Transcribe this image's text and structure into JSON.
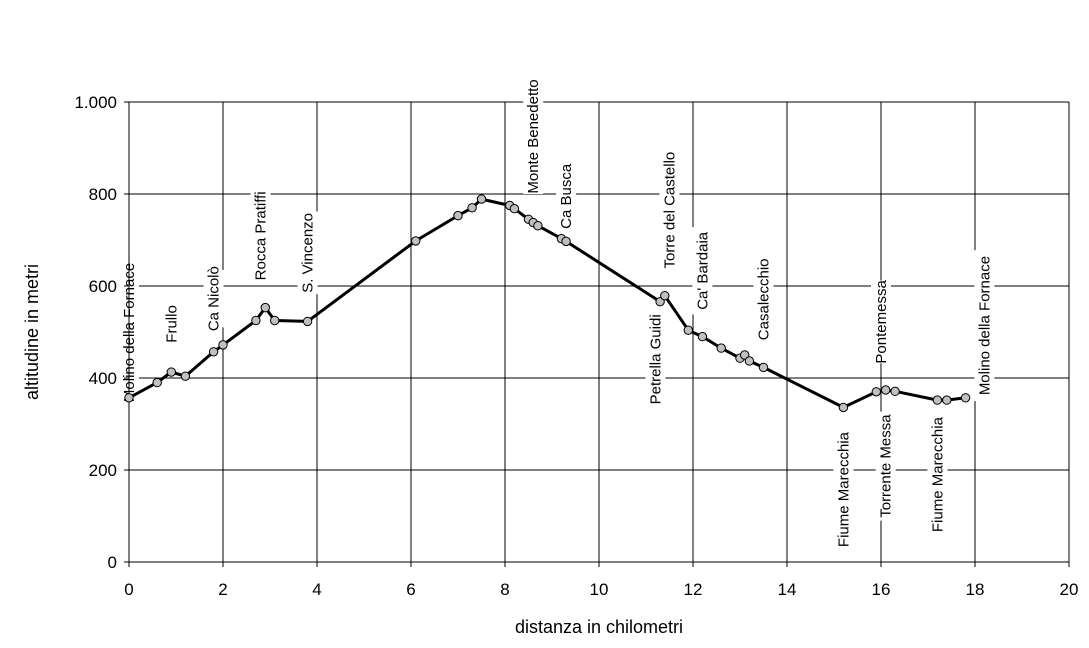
{
  "chart_data": {
    "type": "line",
    "title": "",
    "xlabel": "distanza in chilometri",
    "ylabel": "altitudine  in metri",
    "xlim": [
      0,
      20
    ],
    "ylim": [
      0,
      1000
    ],
    "x_ticks": [
      0,
      2,
      4,
      6,
      8,
      10,
      12,
      14,
      16,
      18,
      20
    ],
    "y_ticks": [
      0,
      200,
      400,
      600,
      800,
      1000
    ],
    "y_tick_labels": [
      "0",
      "200",
      "400",
      "600",
      "800",
      "1.000"
    ],
    "grid": true,
    "series": [
      {
        "color": "#000000",
        "marker_color": "#c0c0c0",
        "points": [
          [
            0,
            357
          ],
          [
            0.6,
            390
          ],
          [
            0.9,
            413
          ],
          [
            1.2,
            404
          ],
          [
            1.8,
            457
          ],
          [
            2.0,
            472
          ],
          [
            2.7,
            525
          ],
          [
            2.9,
            553
          ],
          [
            3.1,
            525
          ],
          [
            3.8,
            523
          ],
          [
            6.1,
            698
          ],
          [
            7.0,
            753
          ],
          [
            7.3,
            770
          ],
          [
            7.5,
            789
          ],
          [
            8.1,
            775
          ],
          [
            8.2,
            768
          ],
          [
            8.5,
            745
          ],
          [
            8.6,
            738
          ],
          [
            8.7,
            731
          ],
          [
            9.2,
            703
          ],
          [
            9.3,
            697
          ],
          [
            11.3,
            566
          ],
          [
            11.4,
            579
          ],
          [
            11.9,
            504
          ],
          [
            12.2,
            490
          ],
          [
            12.6,
            465
          ],
          [
            13.0,
            443
          ],
          [
            13.1,
            450
          ],
          [
            13.2,
            437
          ],
          [
            13.5,
            423
          ],
          [
            15.2,
            336
          ],
          [
            15.9,
            370
          ],
          [
            16.1,
            374
          ],
          [
            16.3,
            371
          ],
          [
            17.2,
            352
          ],
          [
            17.4,
            352
          ],
          [
            17.8,
            357
          ]
        ]
      }
    ],
    "annotations": [
      {
        "text": "Molino della Fornace",
        "x": 0.0,
        "y_top": 628,
        "y_bottom": 370
      },
      {
        "text": "Frullo",
        "x": 0.9,
        "y_top": 565,
        "y_bottom": 470
      },
      {
        "text": "Ca Nicolò",
        "x": 1.8,
        "y_top": 635,
        "y_bottom": 510
      },
      {
        "text": "Rocca Pratiffi",
        "x": 2.8,
        "y_top": 810,
        "y_bottom": 608
      },
      {
        "text": "S. Vincenzo",
        "x": 3.8,
        "y_top": 762,
        "y_bottom": 582
      },
      {
        "text": "Monte Benedetto",
        "x": 8.6,
        "y_top": 1050,
        "y_bottom": 800
      },
      {
        "text": "Ca Busca",
        "x": 9.3,
        "y_top": 845,
        "y_bottom": 745
      },
      {
        "text": "Torre del Castello",
        "x": 11.5,
        "y_top": 900,
        "y_bottom": 630
      },
      {
        "text": "Petrella Guidi",
        "x": 11.2,
        "y_top": 548,
        "y_bottom": 333
      },
      {
        "text": "Ca' Bardaia",
        "x": 12.2,
        "y_top": 728,
        "y_bottom": 538
      },
      {
        "text": "Casalecchio",
        "x": 13.5,
        "y_top": 662,
        "y_bottom": 480
      },
      {
        "text": "Pontemessa",
        "x": 16.0,
        "y_top": 612,
        "y_bottom": 432
      },
      {
        "text": "Molino della Fornace",
        "x": 18.2,
        "y_top": 678,
        "y_bottom": 350
      },
      {
        "text": "Fiume Marecchia",
        "x": 15.2,
        "y_top": 290,
        "y_bottom": 25
      },
      {
        "text": "Torrente Messa",
        "x": 16.1,
        "y_top": 327,
        "y_bottom": 90
      },
      {
        "text": "Fiume Marecchia",
        "x": 17.2,
        "y_top": 320,
        "y_bottom": 60
      }
    ]
  }
}
